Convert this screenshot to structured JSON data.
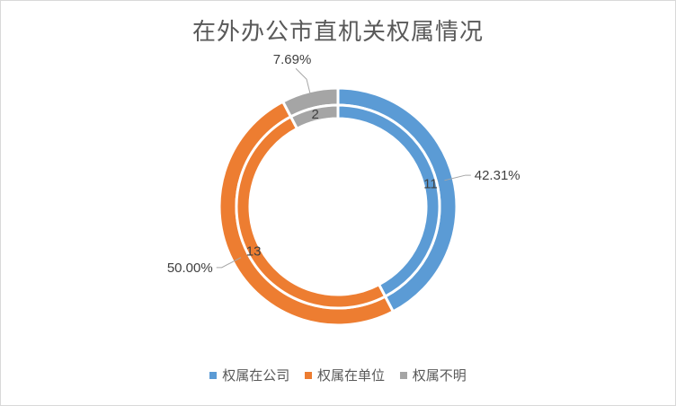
{
  "chart_data": {
    "type": "pie",
    "title": "在外办公市直机关权属情况",
    "legend_position": "bottom",
    "categories": [
      "权属在公司",
      "权属在单位",
      "权属不明"
    ],
    "colors": [
      "#5b9bd5",
      "#ed7d31",
      "#a5a5a5"
    ],
    "series": [
      {
        "values": [
          42.31,
          50.0,
          7.69
        ],
        "labels": [
          "42.31%",
          "50.00%",
          "7.69%"
        ]
      },
      {
        "values": [
          11,
          13,
          2
        ],
        "labels": [
          "11",
          "13",
          "2"
        ]
      }
    ]
  }
}
